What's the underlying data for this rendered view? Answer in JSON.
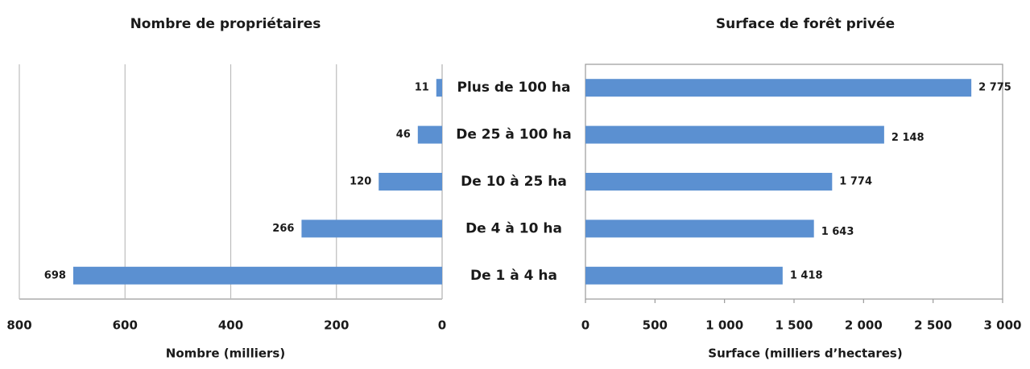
{
  "chart_data": [
    {
      "type": "bar",
      "title": "Nombre de propriétaires",
      "x_label": "Nombre (milliers)",
      "categories": [
        "Plus de 100 ha",
        "De 25 à 100 ha",
        "De 10 à 25 ha",
        "De 4 à 10 ha",
        "De 1 à 4 ha"
      ],
      "values": [
        11,
        46,
        120,
        266,
        698
      ],
      "color": "#5b90d1",
      "xlim": [
        800,
        0
      ],
      "xticks": [
        800,
        600,
        400,
        200,
        0
      ],
      "grid": true
    },
    {
      "type": "bar",
      "title": "Surface de forêt privée",
      "x_label": "Surface (milliers d’hectares)",
      "values": [
        2775,
        2148,
        1774,
        1643,
        1418
      ],
      "value_labels": [
        "2 775",
        "2 148",
        "1 774",
        "1 643",
        "1 418"
      ],
      "color": "#5b90d1",
      "xlim": [
        0,
        3000
      ],
      "xticks": [
        0,
        500,
        {
          "value": 1000,
          "label": "1 000"
        },
        {
          "value": 1500,
          "label": "1 500"
        },
        {
          "value": 2000,
          "label": "2 000"
        },
        {
          "value": 2500,
          "label": "2 500"
        },
        {
          "value": 3000,
          "label": "3 000"
        }
      ],
      "grid": false
    }
  ]
}
